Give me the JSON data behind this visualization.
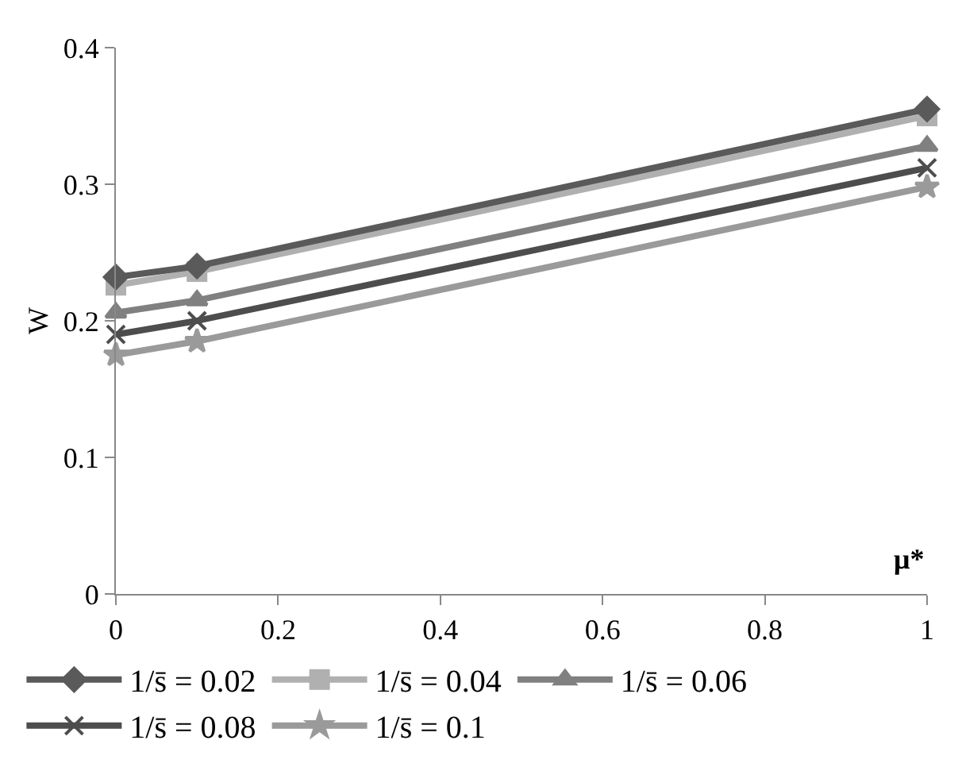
{
  "chart_data": {
    "type": "line",
    "xlabel": "μ*",
    "ylabel": "W",
    "xlim": [
      0,
      1
    ],
    "xticks": [
      0,
      0.2,
      0.4,
      0.6,
      0.8,
      1
    ],
    "ylim": [
      0,
      0.4
    ],
    "yticks": [
      0,
      0.1,
      0.2,
      0.3,
      0.4
    ],
    "grid": false,
    "legend": "bottom",
    "line_style": "solid",
    "series": [
      {
        "name": "1/s̄ = 0.02",
        "color": "#5a5a5a",
        "marker": "diamond",
        "x": [
          0,
          0.1,
          1
        ],
        "values": [
          0.232,
          0.24,
          0.355
        ]
      },
      {
        "name": "1/s̄ = 0.04",
        "color": "#b0b0b0",
        "marker": "square",
        "x": [
          0,
          0.1,
          1
        ],
        "values": [
          0.226,
          0.236,
          0.35
        ]
      },
      {
        "name": "1/s̄ = 0.06",
        "color": "#808080",
        "marker": "triangle",
        "x": [
          0,
          0.1,
          1
        ],
        "values": [
          0.206,
          0.215,
          0.328
        ]
      },
      {
        "name": "1/s̄ = 0.08",
        "color": "#4d4d4d",
        "marker": "cross",
        "x": [
          0,
          0.1,
          1
        ],
        "values": [
          0.19,
          0.2,
          0.312
        ]
      },
      {
        "name": "1/s̄ = 0.1",
        "color": "#9a9a9a",
        "marker": "star",
        "x": [
          0,
          0.1,
          1
        ],
        "values": [
          0.175,
          0.185,
          0.298
        ]
      }
    ]
  }
}
